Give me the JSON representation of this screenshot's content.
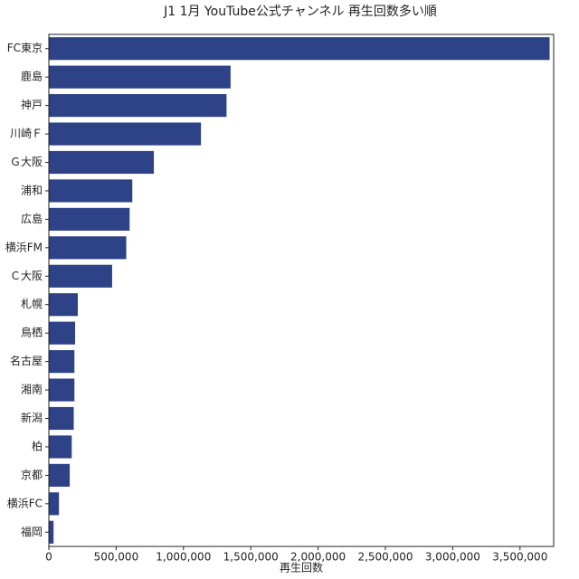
{
  "chart_data": {
    "type": "barh",
    "title": "J1 1月 YouTube公式チャンネル 再生回数多い順",
    "xlabel": "再生回数",
    "categories": [
      "FC東京",
      "鹿島",
      "神戸",
      "川崎Ｆ",
      "Ｇ大阪",
      "浦和",
      "広島",
      "横浜FM",
      "Ｃ大阪",
      "札幌",
      "鳥栖",
      "名古屋",
      "湘南",
      "新潟",
      "柏",
      "京都",
      "横浜FC",
      "福岡"
    ],
    "values": [
      3720000,
      1350000,
      1320000,
      1130000,
      780000,
      620000,
      600000,
      575000,
      470000,
      215000,
      195000,
      190000,
      190000,
      185000,
      170000,
      155000,
      75000,
      35000
    ],
    "color": "#2e4287",
    "xlim": [
      0,
      3750000
    ],
    "xticks": [
      0,
      {
        "value": 500000,
        "label": "500,000"
      },
      {
        "value": 1000000,
        "label": "1,000,000"
      },
      {
        "value": 1500000,
        "label": "1,500,000"
      },
      {
        "value": 2000000,
        "label": "2,000,000"
      },
      {
        "value": 2500000,
        "label": "2,500,000"
      },
      {
        "value": 3000000,
        "label": "3,000,000"
      },
      {
        "value": 3500000,
        "label": "3,500,000"
      }
    ],
    "grid": false
  }
}
